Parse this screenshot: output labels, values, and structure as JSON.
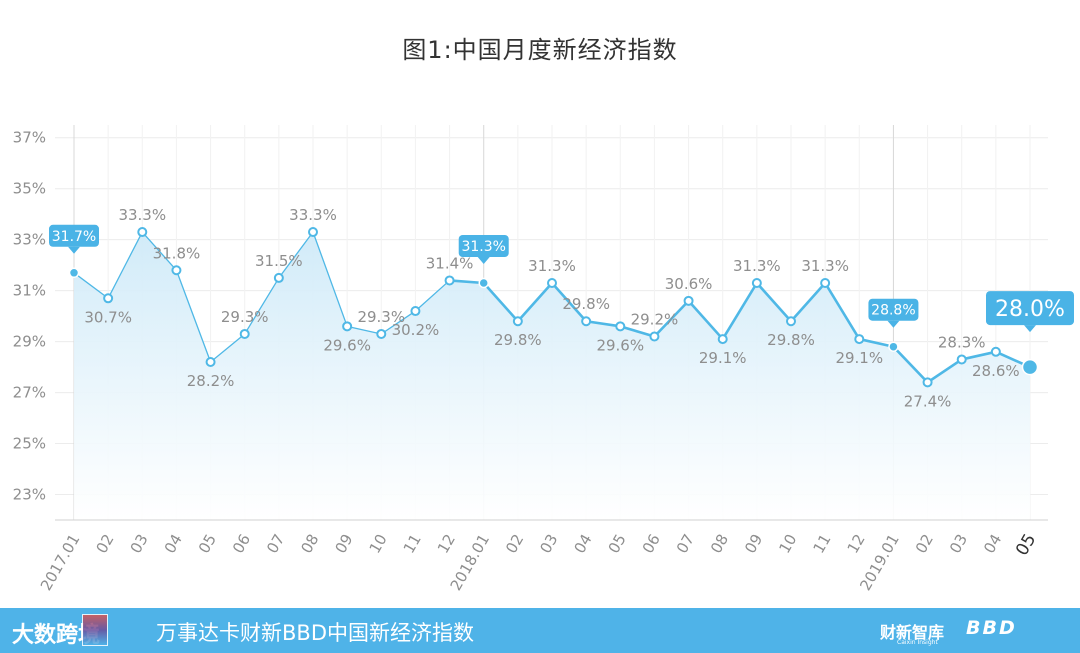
{
  "title": "图1:中国月度新经济指数",
  "chart_data": {
    "type": "line",
    "categories": [
      "2017.01",
      "02",
      "03",
      "04",
      "05",
      "06",
      "07",
      "08",
      "09",
      "10",
      "11",
      "12",
      "2018.01",
      "02",
      "03",
      "04",
      "05",
      "06",
      "07",
      "08",
      "09",
      "10",
      "11",
      "12",
      "2019.01",
      "02",
      "03",
      "04",
      "05"
    ],
    "values": [
      31.7,
      30.7,
      33.3,
      31.8,
      28.2,
      29.3,
      31.5,
      33.3,
      29.6,
      29.3,
      30.2,
      31.4,
      31.3,
      29.8,
      31.3,
      29.8,
      29.6,
      29.2,
      30.6,
      29.1,
      31.3,
      29.8,
      31.3,
      29.1,
      28.8,
      27.4,
      28.3,
      28.6,
      28.0
    ],
    "data_labels": [
      "31.7%",
      "30.7%",
      "33.3%",
      "31.8%",
      "28.2%",
      "29.3%",
      "31.5%",
      "33.3%",
      "29.6%",
      "29.3%",
      "30.2%",
      "31.4%",
      "31.3%",
      "29.8%",
      "31.3%",
      "29.8%",
      "29.6%",
      "29.2%",
      "30.6%",
      "29.1%",
      "31.3%",
      "29.8%",
      "31.3%",
      "29.1%",
      "28.8%",
      "27.4%",
      "28.3%",
      "28.6%",
      "28.0%"
    ],
    "label_position": [
      "callout",
      "below",
      "above",
      "above",
      "below",
      "above",
      "above",
      "above",
      "below",
      "above",
      "below",
      "above",
      "callout",
      "below",
      "above",
      "above",
      "below",
      "above",
      "above",
      "below",
      "above",
      "below",
      "above",
      "below",
      "callout",
      "below",
      "above",
      "below",
      "callout"
    ],
    "yticks": [
      "23%",
      "25%",
      "27%",
      "29%",
      "31%",
      "33%",
      "35%",
      "37%"
    ],
    "ylim": [
      22,
      37.5
    ],
    "ytick_values": [
      23,
      25,
      27,
      29,
      31,
      33,
      35,
      37
    ],
    "grid": true,
    "colors": {
      "line": "#4fb8e6",
      "fill": "#e3f3fb",
      "label": "#8e8e8e",
      "callout": "#4ab3e6",
      "grid": "#ececec"
    }
  },
  "footer": {
    "logo_text": "大数跨境",
    "title": "万事达卡财新BBD中国新经济指数",
    "brand1": "财新智库",
    "brand1_sub": "Caixin Insight",
    "brand2": "BBD"
  }
}
